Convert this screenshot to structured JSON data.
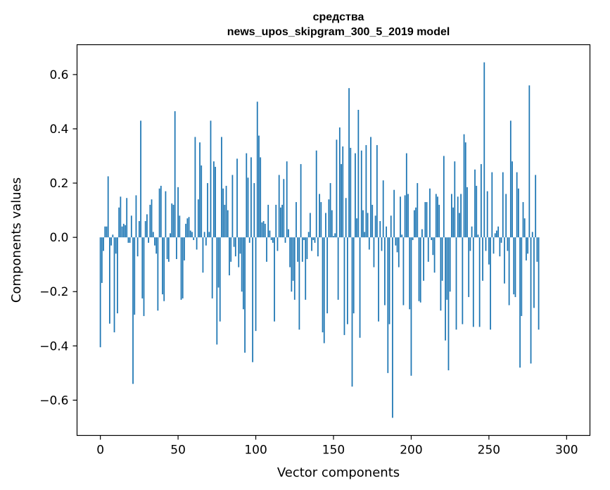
{
  "colors": {
    "bar": "#1f77b4",
    "axis": "#000000",
    "background": "#ffffff"
  },
  "chart_data": {
    "type": "bar",
    "title": "средства",
    "subtitle": "news_upos_skipgram_300_5_2019 model",
    "xlabel": "Vector components",
    "ylabel": "Components values",
    "xlim": [
      -15,
      315
    ],
    "ylim": [
      -0.73,
      0.71
    ],
    "xticks": [
      0,
      50,
      100,
      150,
      200,
      250,
      300
    ],
    "yticks": [
      -0.6,
      -0.4,
      -0.2,
      0.0,
      0.2,
      0.4,
      0.6
    ],
    "ytick_labels": [
      "−0.6",
      "−0.4",
      "−0.2",
      "0.0",
      "0.2",
      "0.4",
      "0.6"
    ],
    "grid": false,
    "x": "0..299",
    "values": [
      -0.405,
      -0.168,
      -0.05,
      0.04,
      0.04,
      0.225,
      -0.318,
      -0.03,
      0.01,
      -0.35,
      -0.06,
      -0.28,
      0.11,
      0.15,
      0.04,
      0.05,
      0.045,
      0.145,
      -0.02,
      -0.02,
      0.08,
      -0.54,
      -0.285,
      0.155,
      -0.07,
      0.06,
      0.43,
      -0.225,
      -0.29,
      0.06,
      0.085,
      -0.02,
      0.12,
      0.14,
      0.02,
      -0.03,
      -0.06,
      -0.27,
      0.18,
      0.19,
      -0.21,
      -0.235,
      0.17,
      -0.08,
      -0.09,
      0.015,
      0.125,
      0.12,
      0.465,
      -0.08,
      0.185,
      0.08,
      -0.23,
      -0.225,
      -0.085,
      0.05,
      0.07,
      0.075,
      0.025,
      0.02,
      -0.01,
      0.37,
      -0.045,
      0.14,
      0.35,
      0.265,
      -0.13,
      0.02,
      -0.03,
      0.2,
      0.02,
      0.43,
      -0.225,
      0.28,
      0.26,
      -0.395,
      -0.185,
      -0.31,
      0.37,
      0.18,
      0.12,
      0.19,
      0.1,
      -0.14,
      -0.09,
      0.23,
      -0.035,
      -0.07,
      0.29,
      -0.11,
      -0.06,
      -0.2,
      -0.265,
      -0.425,
      0.31,
      0.22,
      -0.02,
      0.295,
      -0.46,
      0.2,
      -0.345,
      0.5,
      0.375,
      0.295,
      0.055,
      0.06,
      0.05,
      -0.09,
      0.12,
      0.025,
      -0.01,
      -0.02,
      -0.31,
      0.12,
      -0.05,
      0.23,
      0.11,
      0.12,
      0.215,
      -0.02,
      0.28,
      0.03,
      -0.11,
      -0.2,
      -0.16,
      -0.23,
      0.13,
      -0.09,
      -0.34,
      0.27,
      -0.09,
      -0.01,
      -0.23,
      -0.08,
      0.02,
      0.09,
      -0.05,
      -0.01,
      -0.02,
      0.32,
      -0.07,
      0.16,
      0.13,
      -0.35,
      -0.39,
      0.09,
      -0.28,
      0.14,
      0.2,
      0.1,
      0.005,
      0.015,
      0.36,
      -0.23,
      0.405,
      0.27,
      0.335,
      -0.36,
      0.145,
      -0.32,
      0.55,
      0.33,
      -0.55,
      -0.28,
      0.31,
      0.07,
      0.47,
      -0.37,
      0.32,
      0.1,
      0.02,
      0.34,
      0.09,
      -0.045,
      0.37,
      0.12,
      -0.11,
      0.08,
      0.34,
      -0.31,
      0.06,
      -0.05,
      0.21,
      -0.25,
      0.04,
      -0.5,
      -0.32,
      0.08,
      -0.665,
      0.175,
      -0.03,
      -0.055,
      -0.11,
      0.15,
      0.01,
      -0.25,
      0.155,
      0.31,
      0.16,
      -0.265,
      -0.51,
      -0.01,
      0.1,
      0.11,
      0.2,
      -0.235,
      -0.24,
      0.03,
      -0.16,
      0.13,
      0.13,
      -0.09,
      0.18,
      -0.01,
      -0.065,
      -0.13,
      0.16,
      0.15,
      0.12,
      -0.27,
      -0.16,
      0.3,
      -0.38,
      -0.23,
      -0.49,
      -0.2,
      0.16,
      0.11,
      0.28,
      -0.34,
      0.15,
      0.09,
      0.16,
      -0.32,
      0.38,
      0.35,
      0.185,
      -0.22,
      -0.05,
      0.04,
      -0.33,
      0.25,
      0.19,
      0.01,
      -0.33,
      0.27,
      -0.16,
      0.645,
      -0.05,
      0.17,
      -0.1,
      -0.34,
      0.24,
      -0.06,
      0.015,
      0.025,
      0.04,
      -0.07,
      -0.02,
      0.24,
      -0.17,
      0.16,
      -0.05,
      -0.25,
      0.43,
      0.28,
      -0.21,
      -0.22,
      0.24,
      0.18,
      -0.48,
      -0.29,
      0.13,
      0.07,
      -0.085,
      -0.06,
      0.56,
      -0.465,
      0.02,
      -0.26,
      0.23,
      -0.09,
      -0.34,
      0.0
    ]
  }
}
